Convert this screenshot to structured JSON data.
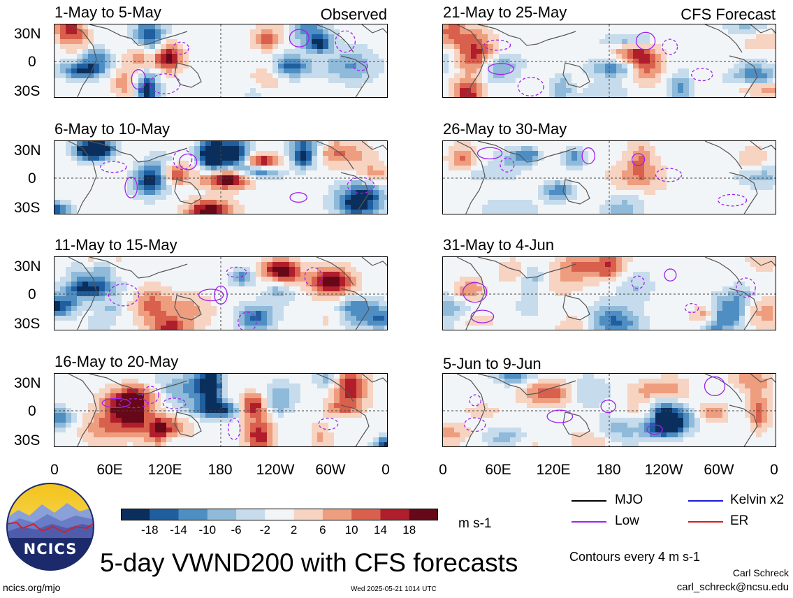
{
  "figure": {
    "title": "5-day VWND200 with CFS forecasts",
    "observed_label": "Observed",
    "forecast_label": "CFS Forecast",
    "units": "m s-1",
    "contour_note": "Contours every 4 m s-1",
    "author_name": "Carl Schreck",
    "author_email": "carl_schreck@ncsu.edu",
    "site": "ncics.org/mjo",
    "timestamp": "Wed 2025-05-21 1014 UTC",
    "logo_text": "NCICS"
  },
  "panels_left": [
    {
      "title": "1-May to 5-May"
    },
    {
      "title": "6-May to 10-May"
    },
    {
      "title": "11-May to 15-May"
    },
    {
      "title": "16-May to 20-May"
    }
  ],
  "panels_right": [
    {
      "title": "21-May to 25-May"
    },
    {
      "title": "26-May to 30-May"
    },
    {
      "title": "31-May to 4-Jun"
    },
    {
      "title": "5-Jun to 9-Jun"
    }
  ],
  "legend": {
    "items": [
      {
        "label": "MJO",
        "color": "#000000"
      },
      {
        "label": "Kelvin x2",
        "color": "#1a1adc"
      },
      {
        "label": "Low",
        "color": "#a020f0"
      },
      {
        "label": "ER",
        "color": "#dc1a1a"
      }
    ]
  },
  "chart_data": {
    "type": "heatmap",
    "variable": "VWND200",
    "units": "m s-1",
    "y_ticks": [
      "30N",
      "0",
      "30S"
    ],
    "x_ticks": [
      "0",
      "60E",
      "120E",
      "180",
      "120W",
      "60W",
      "0"
    ],
    "colorbar": {
      "labels": [
        "-18",
        "-14",
        "-10",
        "-6",
        "-2",
        "2",
        "6",
        "10",
        "14",
        "18"
      ],
      "colors": [
        "#0b2f5c",
        "#1f5fa0",
        "#4f8ec3",
        "#8fbad9",
        "#c6dced",
        "#f2f5f7",
        "#f7d3c2",
        "#ee9d7f",
        "#d8604d",
        "#b01e2c",
        "#670818"
      ]
    },
    "periods_observed": [
      "1-May to 5-May",
      "6-May to 10-May",
      "11-May to 15-May",
      "16-May to 20-May"
    ],
    "periods_forecast": [
      "21-May to 25-May",
      "26-May to 30-May",
      "31-May to 4-Jun",
      "5-Jun to 9-Jun"
    ]
  }
}
